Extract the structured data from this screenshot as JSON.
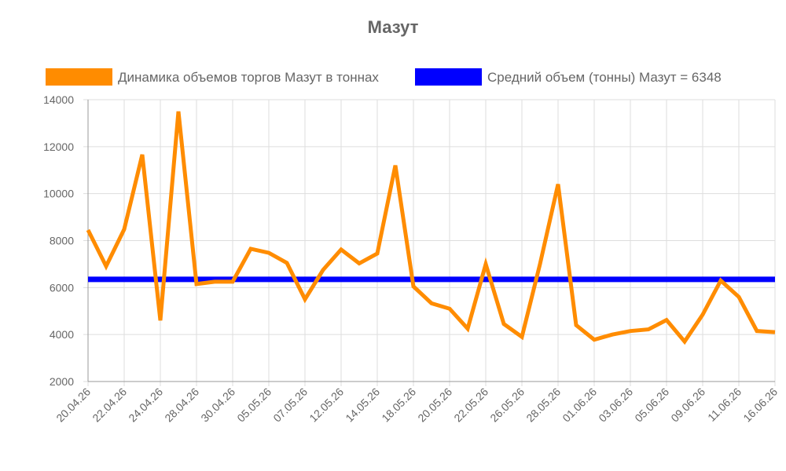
{
  "chart_data": {
    "type": "line",
    "title": "Мазут",
    "categories": [
      "20.04.26",
      null,
      "22.04.26",
      null,
      "24.04.26",
      null,
      "28.04.26",
      null,
      "30.04.26",
      null,
      "05.05.26",
      null,
      "07.05.26",
      null,
      "12.05.26",
      null,
      "14.05.26",
      null,
      "18.05.26",
      null,
      "20.05.26",
      null,
      "22.05.26",
      null,
      "26.05.26",
      null,
      "28.05.26",
      null,
      "01.06.26",
      null,
      "03.06.26",
      null,
      "05.06.26",
      null,
      "09.06.26",
      null,
      "11.06.26",
      null,
      "16.06.26"
    ],
    "series": [
      {
        "name": "Динамика объемов торгов Мазут в тоннах",
        "color": "#ff8c00",
        "values": [
          8450,
          6910,
          8480,
          11660,
          4600,
          13500,
          6150,
          6250,
          6250,
          7650,
          7480,
          7050,
          5500,
          6750,
          7620,
          7030,
          7450,
          11200,
          6050,
          5330,
          5100,
          4250,
          7000,
          4450,
          3900,
          7000,
          10400,
          4400,
          3780,
          4000,
          4150,
          4220,
          4620,
          3700,
          4850,
          6300,
          5600,
          4150,
          4100
        ]
      },
      {
        "name": "Средний объем (тонны) Мазут = 6348",
        "color": "#0000ff",
        "values": [
          6348,
          6348,
          6348,
          6348,
          6348,
          6348,
          6348,
          6348,
          6348,
          6348,
          6348,
          6348,
          6348,
          6348,
          6348,
          6348,
          6348,
          6348,
          6348,
          6348,
          6348,
          6348,
          6348,
          6348,
          6348,
          6348,
          6348,
          6348,
          6348,
          6348,
          6348,
          6348,
          6348,
          6348,
          6348,
          6348,
          6348,
          6348,
          6348
        ]
      }
    ],
    "ylim": [
      2000,
      14000
    ],
    "yticks": [
      2000,
      4000,
      6000,
      8000,
      10000,
      12000,
      14000
    ],
    "grid": true
  }
}
